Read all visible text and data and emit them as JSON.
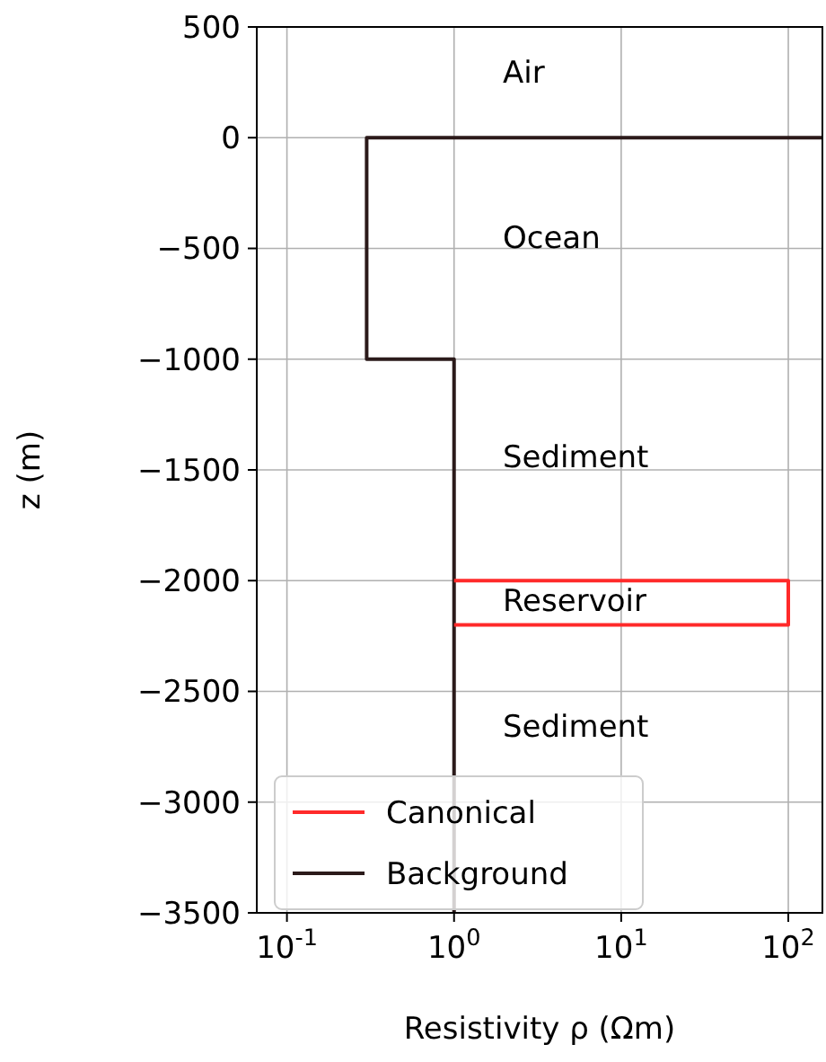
{
  "chart_data": {
    "type": "line",
    "xlabel": "Resistivity ρ (Ωm)",
    "ylabel": "z (m)",
    "log": "x",
    "xlim": [
      0.066,
      160
    ],
    "xticks": [
      {
        "value": 0.1,
        "label": "10$^{-1}$"
      },
      {
        "value": 1,
        "label": "10$^{0}$"
      },
      {
        "value": 10,
        "label": "10$^{1}$"
      },
      {
        "value": 100,
        "label": "10$^{2}$"
      }
    ],
    "ylim": [
      -3500,
      500
    ],
    "yticks": [
      500,
      0,
      -500,
      -1000,
      -1500,
      -2000,
      -2500,
      -3000,
      -3500
    ],
    "series": [
      {
        "name": "Canonical",
        "color": "#ff2a2a",
        "x": [
          1,
          100,
          100,
          1
        ],
        "values": [
          -2000,
          -2000,
          -2200,
          -2200
        ]
      },
      {
        "name": "Background",
        "color": "#2b1a1a",
        "x": [
          160,
          0.3,
          0.3,
          1,
          1
        ],
        "values": [
          0,
          0,
          -1000,
          -1000,
          -3500
        ]
      }
    ],
    "grid": true,
    "legend": "bottom left",
    "line_style": "solid",
    "annotations": [
      "Air",
      "Ocean",
      "Sediment",
      "Reservoir",
      "Sediment"
    ]
  }
}
